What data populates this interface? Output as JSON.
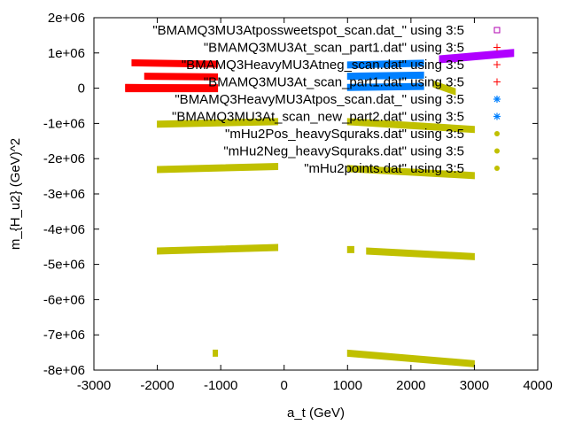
{
  "chart_data": {
    "type": "scatter",
    "xlabel": "a_t (GeV)",
    "ylabel": "m_{H_u2} (GeV)^2",
    "xlim": [
      -3000,
      4000
    ],
    "ylim": [
      -8000000,
      2000000
    ],
    "x_ticks": [
      -3000,
      -2000,
      -1000,
      0,
      1000,
      2000,
      3000,
      4000
    ],
    "x_tick_labels": [
      "-3000",
      "-2000",
      "-1000",
      "0",
      "1000",
      "2000",
      "3000",
      "4000"
    ],
    "y_ticks": [
      2000000,
      1000000,
      0,
      -1000000,
      -2000000,
      -3000000,
      -4000000,
      -5000000,
      -6000000,
      -7000000,
      -8000000
    ],
    "y_tick_labels": [
      "2e+06",
      "1e+06",
      "0",
      "-1e+06",
      "-2e+06",
      "-3e+06",
      "-4e+06",
      "-5e+06",
      "-6e+06",
      "-7e+06",
      "-8e+06"
    ],
    "grid": false,
    "legend_position": "top-right",
    "series": [
      {
        "name": "\"BMAMQ3MU3Atpossweetspot_scan.dat_\" using 3:5",
        "marker": "square",
        "color": "#b000b0",
        "segments": []
      },
      {
        "name": "\"BMAMQ3MU3At_scan_part1.dat\" using 3:5",
        "marker": "plus",
        "color": "#ff0000",
        "segments": []
      },
      {
        "name": "\"BMAMQ3HeavyMU3Atneg_scan.dat\" using 3:5",
        "marker": "plus",
        "color": "#ff0000",
        "segments": [
          {
            "x0": -2400,
            "x1": -1050,
            "y0": 720000,
            "y1": 680000
          },
          {
            "x0": -2200,
            "x1": -1050,
            "y0": 340000,
            "y1": 320000
          },
          {
            "x0": -2500,
            "x1": -1050,
            "y0": 20000,
            "y1": 0
          }
        ]
      },
      {
        "name": "\"BMAMQ3MU3At_scan_part1.dat\" using 3:5",
        "marker": "plus",
        "color": "#ff0000",
        "segments": []
      },
      {
        "name": "\"BMAMQ3HeavyMU3Atpos_scan.dat_\" using 3:5",
        "marker": "star",
        "color": "#0080ff",
        "segments": [
          {
            "x0": 1000,
            "x1": 2200,
            "y0": 660000,
            "y1": 710000
          },
          {
            "x0": 1000,
            "x1": 2200,
            "y0": 340000,
            "y1": 370000
          },
          {
            "x0": 1000,
            "x1": 2200,
            "y0": 20000,
            "y1": 50000
          }
        ]
      },
      {
        "name": "\"BMAMQ3MU3At_scan_new_part2.dat\" using 3:5",
        "marker": "star",
        "color": "#0080ff",
        "segments": []
      },
      {
        "name": "\"mHu2Pos_heavySquraks.dat\" using 3:5",
        "marker": "dot",
        "color": "#c0c000",
        "segments": [
          {
            "x0": 2350,
            "x1": 2700,
            "y0": 120000,
            "y1": -100000
          }
        ]
      },
      {
        "name": "\"mHu2Neg_heavySquraks.dat\" using 3:5",
        "marker": "dot",
        "color": "#c0c000",
        "segments": []
      },
      {
        "name": "\"mHu2points.dat\" using 3:5",
        "marker": "dot",
        "color": "#c0c000",
        "segments": [
          {
            "x0": -2000,
            "x1": -100,
            "y0": -1020000,
            "y1": -950000
          },
          {
            "x0": 1000,
            "x1": 3000,
            "y0": -950000,
            "y1": -1170000
          },
          {
            "x0": -2000,
            "x1": -100,
            "y0": -2310000,
            "y1": -2220000
          },
          {
            "x0": 1000,
            "x1": 3000,
            "y0": -2280000,
            "y1": -2480000
          },
          {
            "x0": -2000,
            "x1": -100,
            "y0": -4620000,
            "y1": -4520000
          },
          {
            "x0": 1000,
            "x1": 1100,
            "y0": -4580000,
            "y1": -4580000
          },
          {
            "x0": 1300,
            "x1": 3000,
            "y0": -4620000,
            "y1": -4780000
          },
          {
            "x0": -1120,
            "x1": -1050,
            "y0": -7520000,
            "y1": -7520000
          },
          {
            "x0": 1000,
            "x1": 3000,
            "y0": -7520000,
            "y1": -7820000
          }
        ]
      },
      {
        "name": "",
        "marker": "band",
        "color": "#ff0000",
        "segments": [
          {
            "x0": -2500,
            "x1": -1050,
            "y0": 0,
            "y1": 0
          }
        ]
      },
      {
        "name": "",
        "marker": "band",
        "color": "#b000ff",
        "segments": [
          {
            "x0": 2450,
            "x1": 3620,
            "y0": 820000,
            "y1": 1000000
          }
        ]
      }
    ]
  }
}
